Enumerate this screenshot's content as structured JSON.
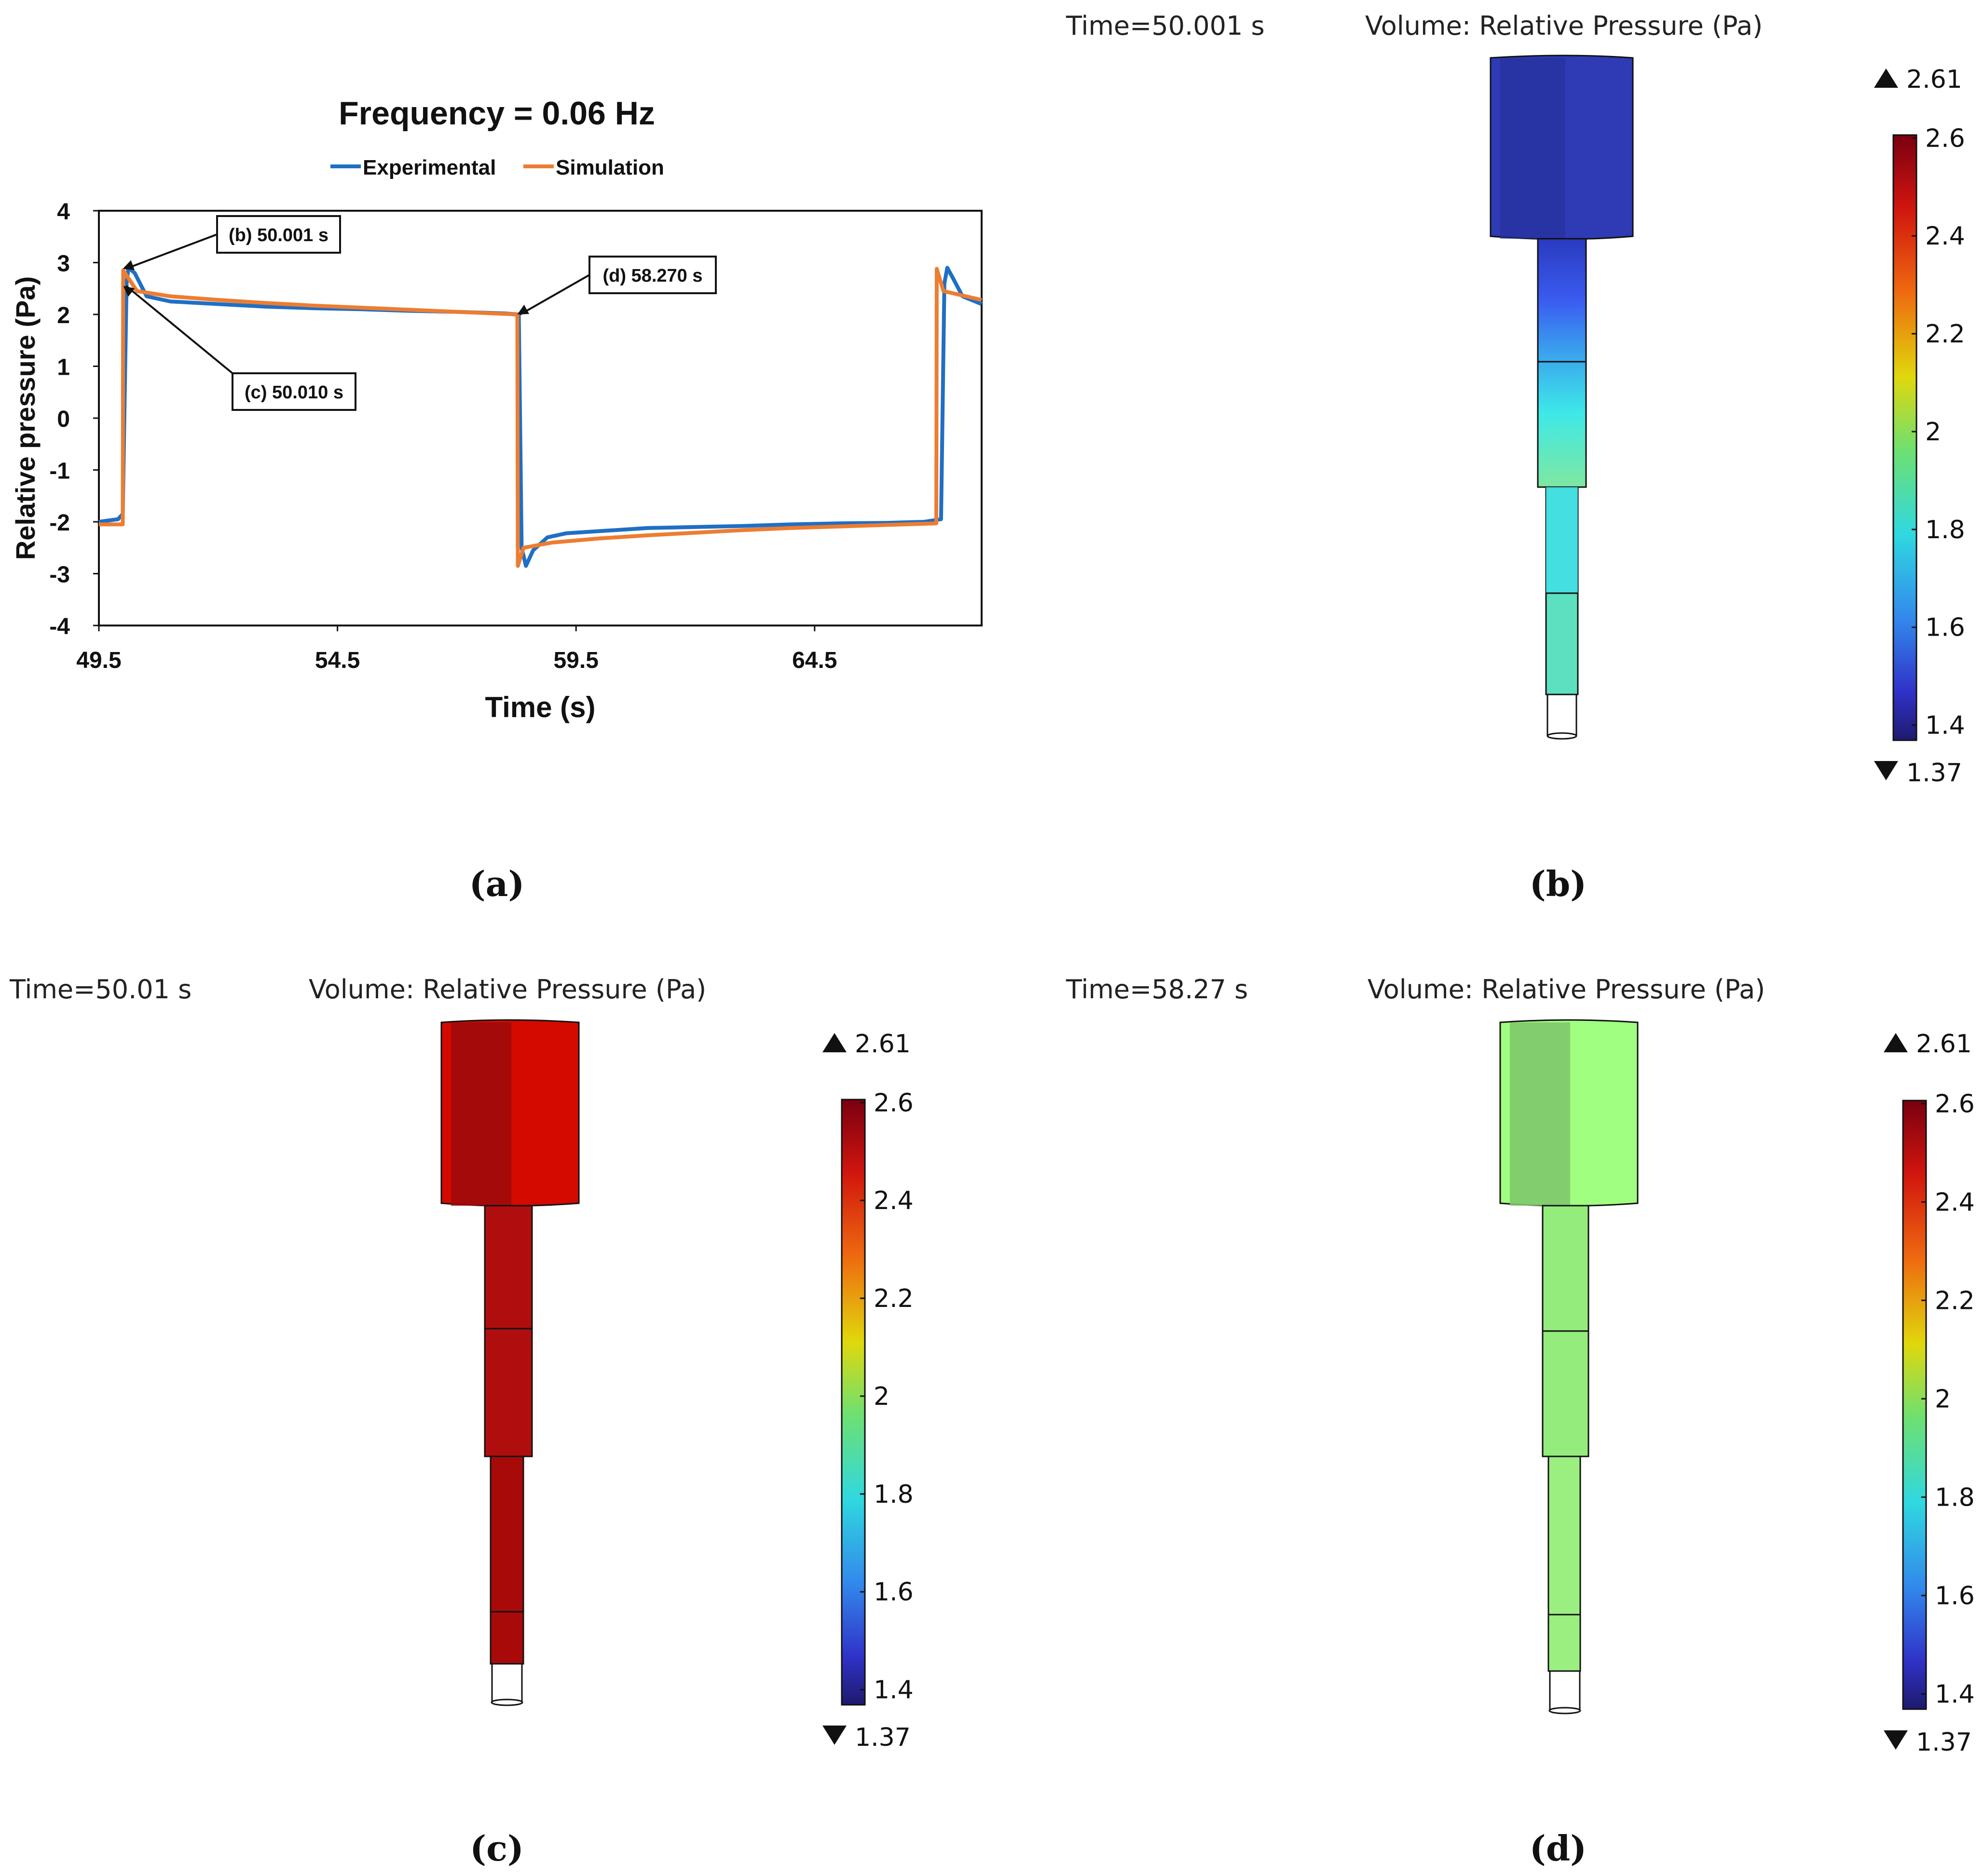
{
  "chart_data": {
    "type": "line",
    "title": "Frequency = 0.06 Hz",
    "xlabel": "Time (s)",
    "ylabel": "Relative pressure (Pa)",
    "xlim": [
      49.5,
      68.0
    ],
    "ylim": [
      -4,
      4
    ],
    "xticks": [
      49.5,
      54.5,
      59.5,
      64.5
    ],
    "yticks": [
      4,
      3,
      2,
      1,
      0,
      -1,
      -2,
      -3,
      -4
    ],
    "legend": {
      "position": "top",
      "items": [
        "Experimental",
        "Simulation"
      ]
    },
    "colors": {
      "experimental": "#1f6fc4",
      "simulation": "#ed7d31"
    },
    "series": [
      {
        "name": "Experimental",
        "x": [
          49.5,
          49.9,
          50.0,
          50.08,
          50.12,
          50.25,
          50.5,
          51.0,
          52.0,
          53.0,
          54.0,
          55.0,
          56.0,
          57.0,
          58.0,
          58.3,
          58.36,
          58.45,
          58.6,
          58.9,
          59.3,
          60.0,
          61.0,
          62.0,
          63.0,
          64.0,
          65.0,
          66.0,
          66.8,
          67.15,
          67.22,
          67.28,
          67.4,
          67.6,
          68.0
        ],
        "y": [
          -2.0,
          -1.95,
          -1.85,
          2.6,
          2.9,
          2.8,
          2.35,
          2.25,
          2.2,
          2.15,
          2.12,
          2.1,
          2.07,
          2.05,
          2.02,
          2.0,
          -2.5,
          -2.85,
          -2.55,
          -2.3,
          -2.22,
          -2.18,
          -2.12,
          -2.1,
          -2.08,
          -2.05,
          -2.03,
          -2.02,
          -2.0,
          -1.95,
          2.6,
          2.9,
          2.7,
          2.35,
          2.2
        ]
      },
      {
        "name": "Simulation",
        "x": [
          49.5,
          50.0,
          50.01,
          50.3,
          51.0,
          52.0,
          53.0,
          54.0,
          55.0,
          56.0,
          57.0,
          58.27,
          58.28,
          58.4,
          59.0,
          60.0,
          61.0,
          62.0,
          63.0,
          64.0,
          65.0,
          66.0,
          67.05,
          67.06,
          67.2,
          68.0
        ],
        "y": [
          -2.05,
          -2.05,
          2.85,
          2.45,
          2.35,
          2.28,
          2.22,
          2.17,
          2.13,
          2.09,
          2.05,
          2.0,
          -2.85,
          -2.5,
          -2.4,
          -2.32,
          -2.26,
          -2.21,
          -2.16,
          -2.12,
          -2.09,
          -2.06,
          -2.03,
          2.88,
          2.45,
          2.28
        ]
      }
    ],
    "annotations": [
      {
        "label": "(b) 50.001 s",
        "x": 50.001,
        "y": 2.88
      },
      {
        "label": "(c) 50.010 s",
        "x": 50.01,
        "y": 2.55
      },
      {
        "label": "(d) 58.270 s",
        "x": 58.27,
        "y": 2.0
      }
    ]
  },
  "panels": {
    "a": {
      "caption": "(a)"
    },
    "b": {
      "caption": "(b)",
      "time": "Time=50.001 s",
      "title": "Volume: Relative Pressure (Pa)"
    },
    "c": {
      "caption": "(c)",
      "time": "Time=50.01 s",
      "title": "Volume: Relative Pressure (Pa)"
    },
    "d": {
      "caption": "(d)",
      "time": "Time=58.27 s",
      "title": "Volume: Relative Pressure (Pa)"
    }
  },
  "colorbar": {
    "max_label": "2.61",
    "min_label": "1.37",
    "ticks": [
      "2.6",
      "2.4",
      "2.2",
      "2",
      "1.8",
      "1.6",
      "1.4"
    ]
  }
}
